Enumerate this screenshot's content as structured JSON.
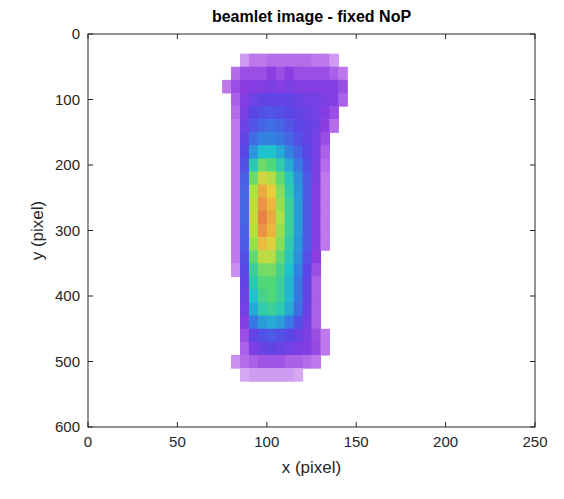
{
  "chart_data": {
    "type": "heatmap",
    "title": "beamlet image - fixed NoP",
    "x_label": "x (pixel)",
    "y_label": "y (pixel)",
    "xlim": [
      0,
      250
    ],
    "ylim": [
      0,
      600
    ],
    "xticks": [
      0,
      50,
      100,
      150,
      200,
      250
    ],
    "yticks": [
      0,
      100,
      200,
      300,
      400,
      500,
      600
    ],
    "clim": [
      0,
      100
    ],
    "x_bins": [
      70,
      75,
      80,
      85,
      90,
      95,
      100,
      105,
      110,
      115,
      120,
      125,
      130,
      135,
      140,
      145,
      150
    ],
    "y_bins": [
      30,
      50,
      70,
      90,
      110,
      130,
      150,
      170,
      190,
      210,
      230,
      250,
      270,
      290,
      310,
      330,
      350,
      370,
      390,
      410,
      430,
      450,
      470,
      490,
      510,
      530
    ],
    "cells": [
      [
        null,
        null,
        null,
        5,
        8,
        8,
        10,
        10,
        10,
        10,
        10,
        8,
        8,
        5,
        null,
        null
      ],
      [
        null,
        null,
        10,
        15,
        15,
        15,
        18,
        15,
        18,
        15,
        15,
        15,
        15,
        12,
        8,
        null
      ],
      [
        null,
        8,
        15,
        18,
        20,
        20,
        22,
        20,
        22,
        20,
        20,
        20,
        20,
        20,
        15,
        null
      ],
      [
        null,
        null,
        12,
        20,
        25,
        28,
        28,
        28,
        28,
        26,
        24,
        24,
        22,
        20,
        12,
        null
      ],
      [
        null,
        null,
        10,
        22,
        30,
        32,
        33,
        32,
        30,
        28,
        26,
        24,
        20,
        15,
        null,
        null
      ],
      [
        null,
        null,
        8,
        25,
        33,
        36,
        38,
        36,
        33,
        30,
        28,
        25,
        18,
        10,
        null,
        null
      ],
      [
        null,
        null,
        8,
        28,
        38,
        42,
        42,
        40,
        36,
        32,
        28,
        24,
        15,
        null,
        null,
        null
      ],
      [
        null,
        null,
        8,
        30,
        45,
        52,
        52,
        48,
        42,
        36,
        30,
        24,
        12,
        null,
        null,
        null
      ],
      [
        null,
        null,
        8,
        32,
        55,
        65,
        62,
        56,
        48,
        40,
        32,
        22,
        10,
        null,
        null,
        null
      ],
      [
        null,
        null,
        8,
        35,
        65,
        78,
        74,
        64,
        54,
        44,
        34,
        22,
        8,
        null,
        null,
        null
      ],
      [
        null,
        null,
        8,
        36,
        72,
        88,
        82,
        68,
        56,
        45,
        34,
        20,
        8,
        null,
        null,
        null
      ],
      [
        null,
        null,
        8,
        36,
        75,
        92,
        86,
        70,
        58,
        46,
        34,
        20,
        8,
        null,
        null,
        null
      ],
      [
        null,
        null,
        8,
        36,
        76,
        95,
        88,
        72,
        58,
        46,
        34,
        20,
        8,
        null,
        null,
        null
      ],
      [
        null,
        null,
        8,
        35,
        74,
        92,
        86,
        70,
        58,
        46,
        34,
        20,
        8,
        null,
        null,
        null
      ],
      [
        null,
        null,
        8,
        34,
        70,
        85,
        80,
        68,
        56,
        45,
        34,
        20,
        8,
        null,
        null,
        null
      ],
      [
        null,
        null,
        8,
        32,
        64,
        75,
        74,
        64,
        54,
        44,
        32,
        18,
        null,
        null,
        null,
        null
      ],
      [
        null,
        null,
        6,
        30,
        58,
        66,
        66,
        60,
        52,
        42,
        30,
        15,
        null,
        null,
        null,
        null
      ],
      [
        null,
        null,
        null,
        28,
        55,
        62,
        62,
        58,
        50,
        40,
        28,
        12,
        null,
        null,
        null,
        null
      ],
      [
        null,
        null,
        null,
        26,
        52,
        60,
        62,
        58,
        50,
        40,
        28,
        12,
        null,
        null,
        null,
        null
      ],
      [
        null,
        null,
        null,
        24,
        48,
        56,
        58,
        55,
        48,
        38,
        26,
        12,
        null,
        null,
        null,
        null
      ],
      [
        null,
        null,
        null,
        20,
        40,
        46,
        48,
        46,
        40,
        32,
        24,
        12,
        null,
        null,
        null,
        null
      ],
      [
        null,
        null,
        null,
        15,
        28,
        32,
        34,
        32,
        30,
        26,
        22,
        15,
        8,
        null,
        null,
        null
      ],
      [
        null,
        null,
        null,
        12,
        22,
        26,
        28,
        26,
        24,
        22,
        20,
        16,
        8,
        null,
        null,
        null
      ],
      [
        null,
        null,
        6,
        10,
        12,
        14,
        14,
        14,
        12,
        12,
        10,
        8,
        null,
        null,
        null,
        null
      ],
      [
        null,
        null,
        null,
        4,
        5,
        5,
        5,
        5,
        5,
        4,
        null,
        null,
        null,
        null,
        null,
        null
      ]
    ]
  }
}
